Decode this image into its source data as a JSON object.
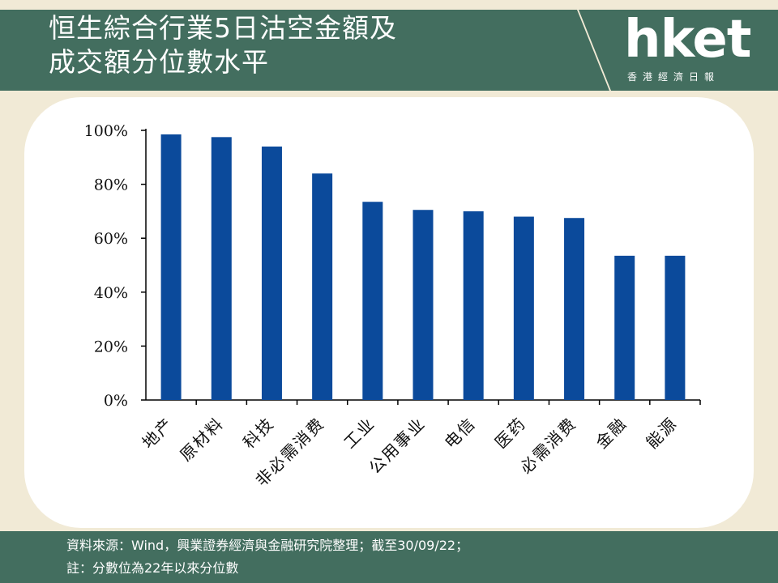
{
  "header": {
    "title_line1": "恒生綜合行業5日沽空金額及",
    "title_line2": "成交額分位數水平"
  },
  "logo": {
    "word": "hket",
    "sub": "香港經濟日報"
  },
  "footer": {
    "line1": "資料來源：Wind，興業證券經濟與金融研究院整理；截至30/09/22；",
    "line2": "註：分數位為22年以來分位數"
  },
  "colors": {
    "header_band": "#436e5f",
    "background": "#f1ead6",
    "bar": "#0b4a9b"
  },
  "chart_data": {
    "type": "bar",
    "categories": [
      "地产",
      "原材料",
      "科技",
      "非必需消费",
      "工业",
      "公用事业",
      "电信",
      "医药",
      "必需消费",
      "金融",
      "能源"
    ],
    "values": [
      98.5,
      97.5,
      94,
      84,
      73.5,
      70.5,
      70,
      68,
      67.5,
      53.5,
      53.5
    ],
    "ylim": [
      0,
      100
    ],
    "yticks": [
      "0%",
      "20%",
      "40%",
      "60%",
      "80%",
      "100%"
    ],
    "ytick_values": [
      0,
      20,
      40,
      60,
      80,
      100
    ],
    "title": "",
    "xlabel": "",
    "ylabel": "",
    "grid": false,
    "legend": "none"
  }
}
